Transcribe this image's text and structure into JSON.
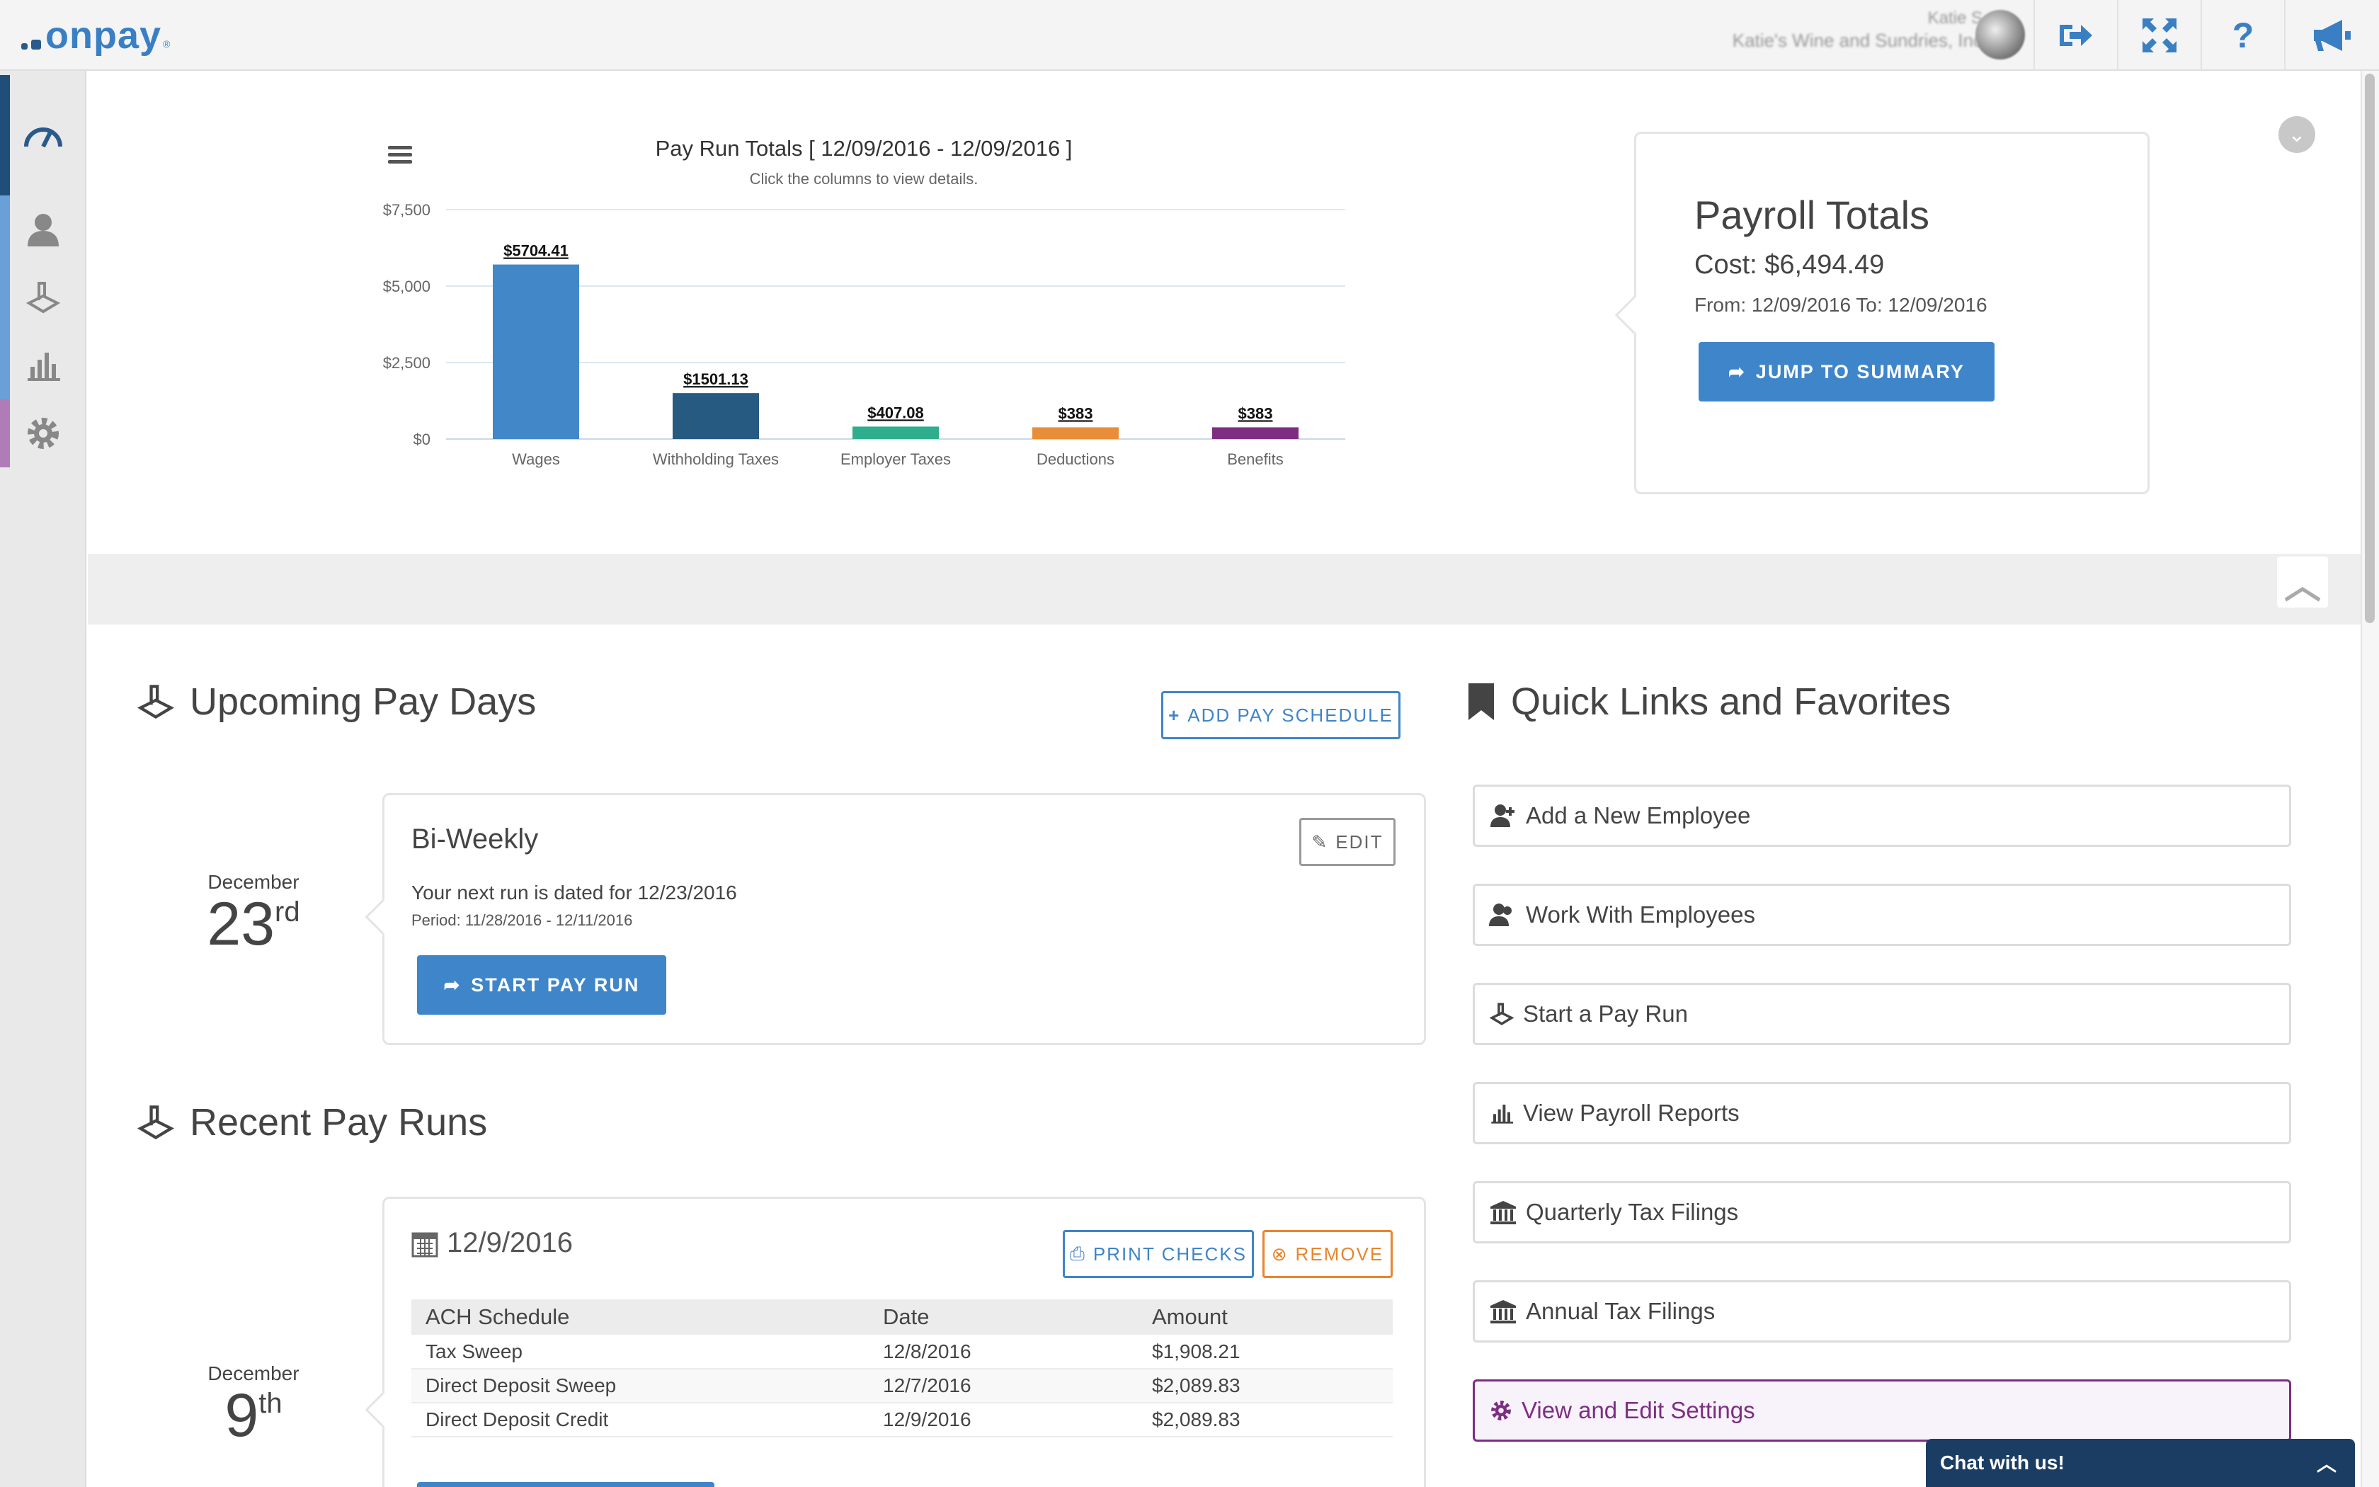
{
  "app": {
    "logo_text": "onpay",
    "logo_reg": "®"
  },
  "header": {
    "user_name": "Katie S",
    "company": "Katie's Wine and Sundries, Inc",
    "icons": [
      "logout-icon",
      "fullscreen-icon",
      "help-icon",
      "announcements-icon"
    ]
  },
  "sidebar": {
    "items": [
      {
        "name": "dashboard",
        "icon": "speedometer-icon",
        "color": "#1f4e79"
      },
      {
        "name": "employees",
        "icon": "person-icon",
        "color": "#6a9fd8"
      },
      {
        "name": "payroll",
        "icon": "pay-icon",
        "color": "#6a9fd8"
      },
      {
        "name": "reports",
        "icon": "bar-chart-icon",
        "color": "#6a9fd8"
      },
      {
        "name": "settings",
        "icon": "gear-icon",
        "color": "#b07cb7"
      }
    ]
  },
  "chart_data": {
    "type": "bar",
    "title": "Pay Run Totals [ 12/09/2016 - 12/09/2016 ]",
    "subtitle": "Click the columns to view details.",
    "categories": [
      "Wages",
      "Withholding Taxes",
      "Employer Taxes",
      "Deductions",
      "Benefits"
    ],
    "values": [
      5704.41,
      1501.13,
      407.08,
      383,
      383
    ],
    "data_labels": [
      "$5704.41",
      "$1501.13",
      "$407.08",
      "$383",
      "$383"
    ],
    "colors": [
      "#4287c8",
      "#275a80",
      "#2fae8e",
      "#e88d3a",
      "#7d2e80"
    ],
    "yticks": [
      "$0",
      "$2,500",
      "$5,000",
      "$7,500"
    ],
    "ylim": [
      0,
      7500
    ],
    "grid": true
  },
  "payroll_totals": {
    "title": "Payroll Totals",
    "cost": "Cost: $6,494.49",
    "range": "From: 12/09/2016 To: 12/09/2016",
    "button": "JUMP TO SUMMARY"
  },
  "upcoming": {
    "title": "Upcoming Pay Days",
    "add_button": "ADD PAY SCHEDULE",
    "month": "December",
    "day": "23",
    "suffix": "rd",
    "schedule_name": "Bi-Weekly",
    "edit_button": "EDIT",
    "next_run": "Your next run is dated for 12/23/2016",
    "period": "Period: 11/28/2016 - 12/11/2016",
    "start_button": "START PAY RUN"
  },
  "recent": {
    "title": "Recent Pay Runs",
    "month": "December",
    "day": "9",
    "suffix": "th",
    "run_date": "12/9/2016",
    "print_button": "PRINT CHECKS",
    "remove_button": "REMOVE",
    "table": {
      "headers": [
        "ACH Schedule",
        "Date",
        "Amount"
      ],
      "rows": [
        [
          "Tax Sweep",
          "12/8/2016",
          "$1,908.21"
        ],
        [
          "Direct Deposit Sweep",
          "12/7/2016",
          "$2,089.83"
        ],
        [
          "Direct Deposit Credit",
          "12/9/2016",
          "$2,089.83"
        ]
      ]
    }
  },
  "quick_links": {
    "title": "Quick Links and Favorites",
    "items": [
      {
        "label": "Add a New Employee",
        "icon": "add-person-icon"
      },
      {
        "label": "Work With Employees",
        "icon": "people-icon"
      },
      {
        "label": "Start a Pay Run",
        "icon": "pay-icon"
      },
      {
        "label": "View Payroll Reports",
        "icon": "bar-chart-icon"
      },
      {
        "label": "Quarterly Tax Filings",
        "icon": "bank-icon"
      },
      {
        "label": "Annual Tax Filings",
        "icon": "bank-icon"
      },
      {
        "label": "View and Edit Settings",
        "icon": "gear-icon"
      }
    ]
  },
  "chat": {
    "label": "Chat with us!"
  }
}
